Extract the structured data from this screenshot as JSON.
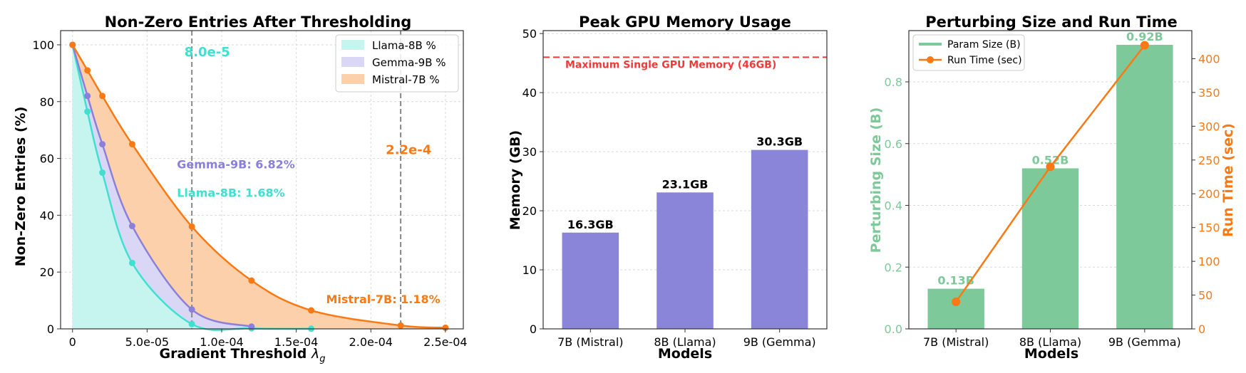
{
  "chart_data": [
    {
      "type": "area",
      "title": "Non-Zero Entries After Thresholding",
      "xlabel": "Gradient Threshold",
      "xlabel_symbol": "λ",
      "xlabel_subscript": "g",
      "ylabel": "Non-Zero Entries (%)",
      "xlim": [
        -8e-06,
        0.000262
      ],
      "ylim": [
        0,
        105
      ],
      "grid": true,
      "legend_position": "top-right",
      "x_ticks": [
        0,
        5e-05,
        0.0001,
        0.00015,
        0.0002,
        0.00025
      ],
      "x_tick_labels": [
        "0",
        "5.0e-05",
        "1.0e-04",
        "1.5e-04",
        "2.0e-04",
        "2.5e-04"
      ],
      "y_ticks": [
        0,
        20,
        40,
        60,
        80,
        100
      ],
      "y_tick_labels": [
        "0",
        "20",
        "40",
        "60",
        "80",
        "100"
      ],
      "series": [
        {
          "name": "Llama-8B %",
          "color": "#40e0d0",
          "fill": "#c6f4ee",
          "x": [
            0,
            1e-05,
            2e-05,
            4e-05,
            8e-05,
            0.00012,
            0.00016
          ],
          "y": [
            100,
            76.5,
            55,
            23.2,
            1.68,
            0.2,
            0.05
          ]
        },
        {
          "name": "Gemma-9B %",
          "color": "#8a80db",
          "fill": "#d9d7f5",
          "x": [
            0,
            1e-05,
            2e-05,
            4e-05,
            8e-05,
            0.00012
          ],
          "y": [
            100,
            82,
            65,
            36.2,
            6.82,
            0.8
          ]
        },
        {
          "name": "Mistral-7B %",
          "color": "#f97a14",
          "fill": "#fdd0ac",
          "x": [
            0,
            1e-05,
            2e-05,
            4e-05,
            8e-05,
            0.00012,
            0.00016,
            0.00022,
            0.00025
          ],
          "y": [
            100,
            91,
            82,
            65,
            36,
            17,
            6.5,
            1.18,
            0.4
          ]
        }
      ],
      "vlines": [
        {
          "x": 8e-05,
          "label": "8.0e-5",
          "color": "#40e0d0",
          "label_x": 7.5e-05,
          "label_y": 96
        },
        {
          "x": 0.00022,
          "label": "2.2e-4",
          "color": "#f97a14",
          "label_x": 0.00021,
          "label_y": 61.5
        }
      ],
      "annotations": [
        {
          "text": "Gemma-9B: 6.82%",
          "color": "#8a80db",
          "x": 7e-05,
          "y": 56.5
        },
        {
          "text": "Llama-8B: 1.68%",
          "color": "#40e0d0",
          "x": 7e-05,
          "y": 46.5
        },
        {
          "text": "Mistral-7B: 1.18%",
          "color": "#f97a14",
          "x": 0.00017,
          "y": 9
        }
      ]
    },
    {
      "type": "bar",
      "title": "Peak GPU Memory Usage",
      "xlabel": "Models",
      "ylabel": "Memory (GB)",
      "ylim": [
        0,
        50.5
      ],
      "grid": true,
      "categories": [
        "7B (Mistral)",
        "8B (Llama)",
        "9B (Gemma)"
      ],
      "values": [
        16.3,
        23.1,
        30.3
      ],
      "value_labels": [
        "16.3GB",
        "23.1GB",
        "30.3GB"
      ],
      "bar_color": "#8a85d9",
      "y_ticks": [
        0,
        10,
        20,
        30,
        40,
        50
      ],
      "y_tick_labels": [
        "0",
        "10",
        "20",
        "30",
        "40",
        "50"
      ],
      "hline": {
        "y": 46,
        "label": "Maximum Single GPU Memory (46GB)",
        "color": "#f03a3a"
      }
    },
    {
      "type": "bar+line",
      "title": "Perturbing Size and Run Time",
      "xlabel": "Models",
      "ylabel_left": "Perturbing Size (B)",
      "ylabel_right": "Run Time (sec)",
      "ylim_left": [
        0,
        0.966
      ],
      "ylim_right": [
        0,
        441.6
      ],
      "grid": true,
      "legend_position": "top-left",
      "categories": [
        "7B (Mistral)",
        "8B (Llama)",
        "9B (Gemma)"
      ],
      "series": [
        {
          "name": "Param Size (B)",
          "type": "bar",
          "axis": "left",
          "color": "#7dc99a",
          "values": [
            0.13,
            0.52,
            0.92
          ],
          "value_labels": [
            "0.13B",
            "0.52B",
            "0.92B"
          ]
        },
        {
          "name": "Run Time (sec)",
          "type": "line",
          "axis": "right",
          "color": "#f97a14",
          "values": [
            40,
            240,
            420
          ]
        }
      ],
      "y_ticks_left": [
        0,
        0.2,
        0.4,
        0.6,
        0.8
      ],
      "y_tick_labels_left": [
        "0.0",
        "0.2",
        "0.4",
        "0.6",
        "0.8"
      ],
      "y_ticks_right": [
        0,
        50,
        100,
        150,
        200,
        250,
        300,
        350,
        400
      ],
      "y_tick_labels_right": [
        "0",
        "50",
        "100",
        "150",
        "200",
        "250",
        "300",
        "350",
        "400"
      ]
    }
  ]
}
